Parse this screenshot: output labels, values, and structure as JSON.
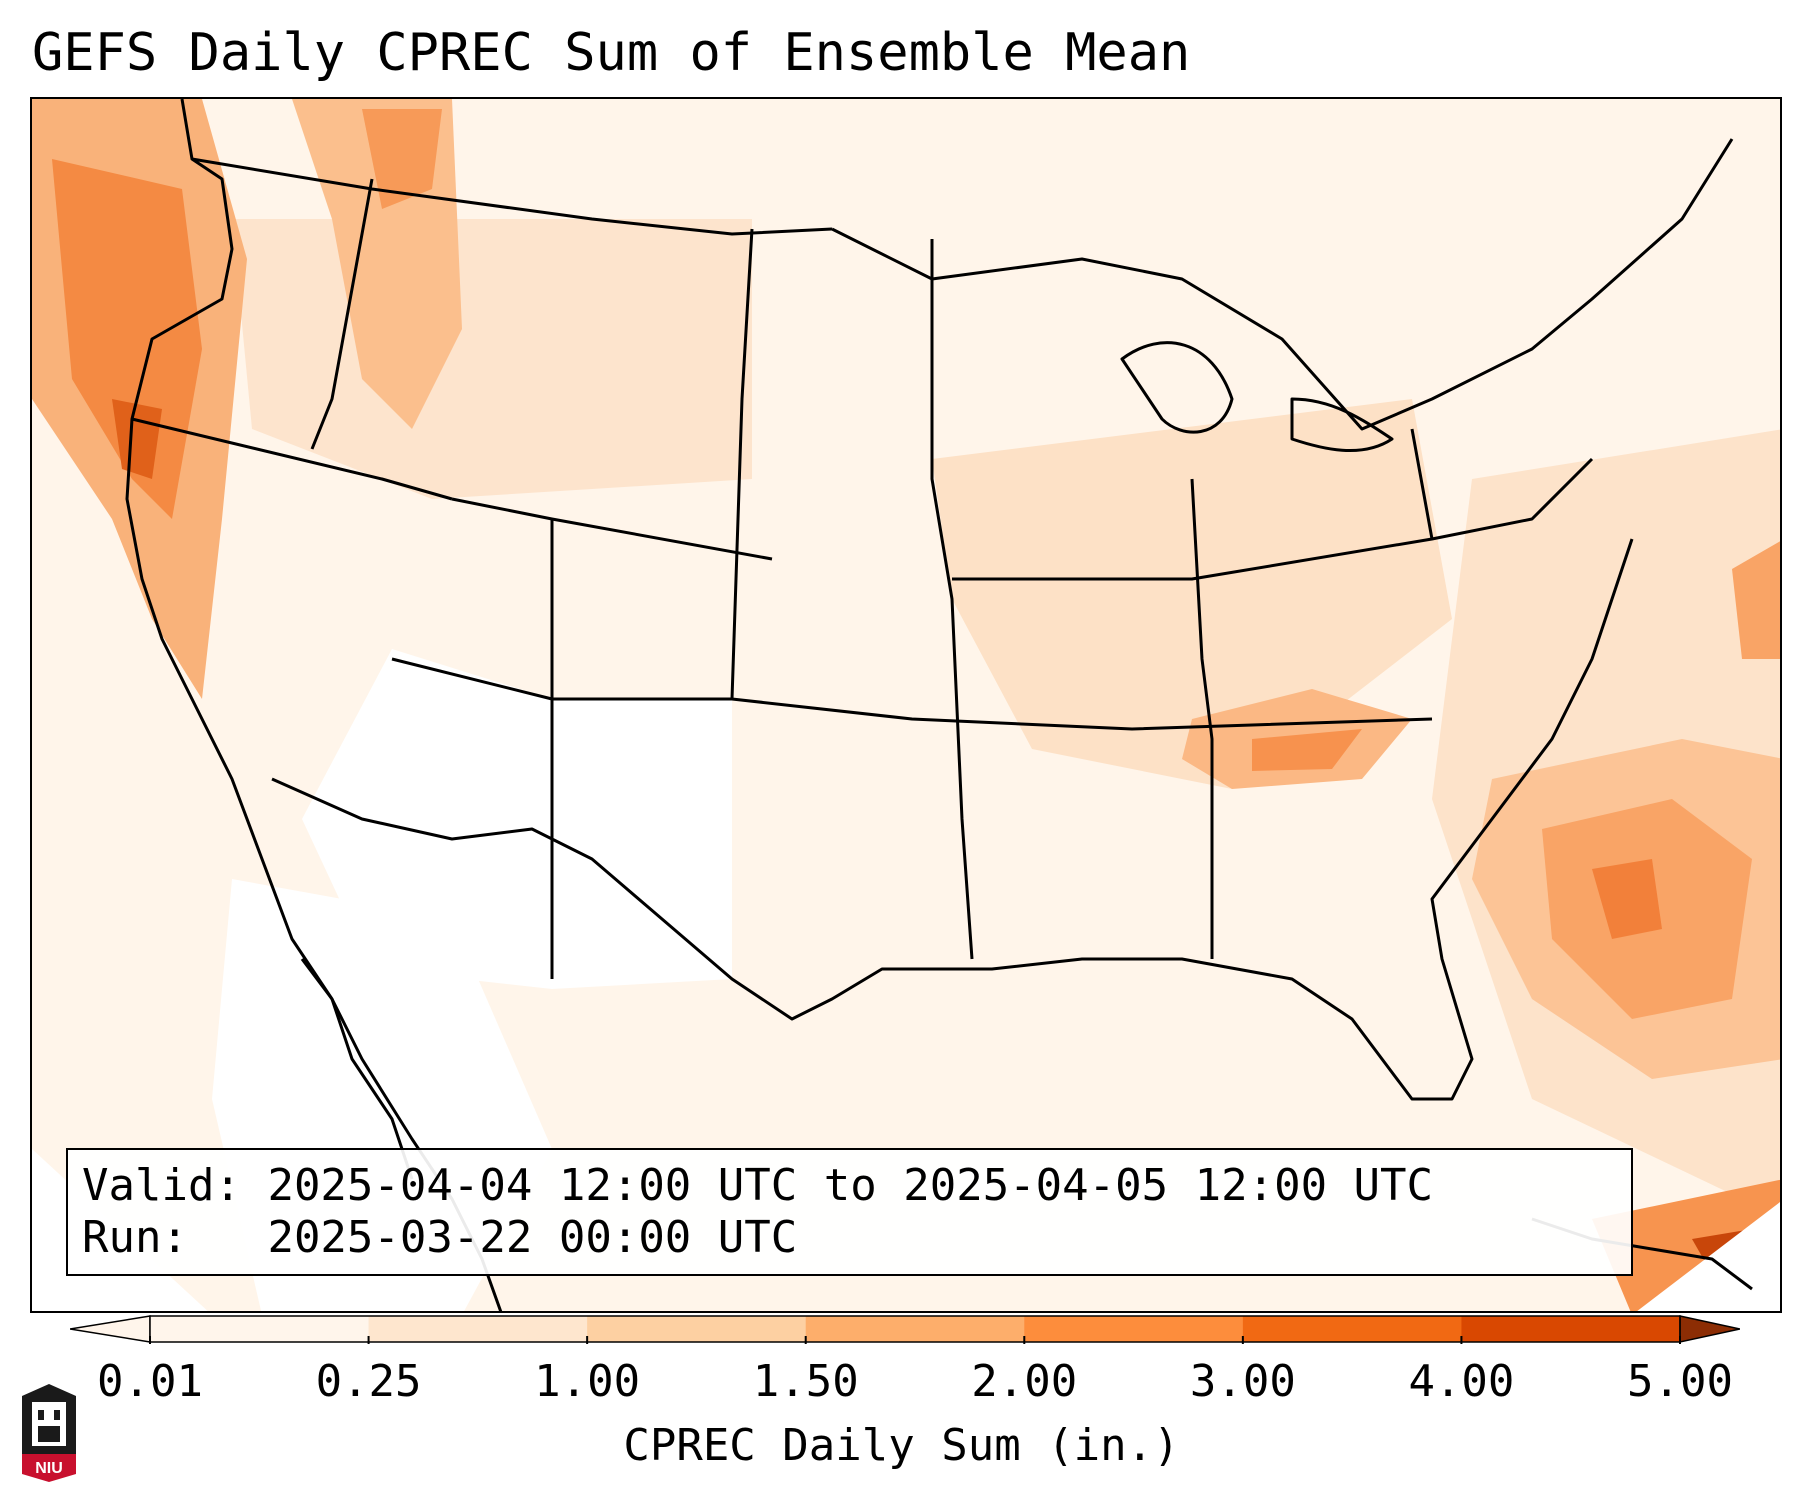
{
  "title": "GEFS Daily CPREC Sum of Ensemble Mean",
  "info": {
    "valid_label": "Valid:",
    "valid_value": "2025-04-04 12:00 UTC to 2025-04-05 12:00 UTC",
    "run_label": "Run:",
    "run_value": "2025-03-22 00:00 UTC"
  },
  "colorbar": {
    "label": "CPREC Daily Sum (in.)",
    "ticks": [
      "0.01",
      "0.25",
      "1.00",
      "1.50",
      "2.00",
      "3.00",
      "4.00",
      "5.00"
    ],
    "colors": [
      "#fff5eb",
      "#fee6ce",
      "#fdd0a2",
      "#fdae6b",
      "#fd8d3c",
      "#f16913",
      "#d94801",
      "#8c2d04"
    ],
    "extend": "both"
  },
  "logo": {
    "text": "NIU",
    "icon": "university-seal-icon"
  },
  "map": {
    "projection": "lambert-conformal",
    "region": "CONUS",
    "features": [
      "state-borders",
      "coastlines",
      "lakes"
    ],
    "heaviest_precip_regions": [
      "Pacific Northwest coast",
      "Tennessee Valley",
      "Western Atlantic off the Carolinas",
      "Northern Cuba"
    ]
  }
}
